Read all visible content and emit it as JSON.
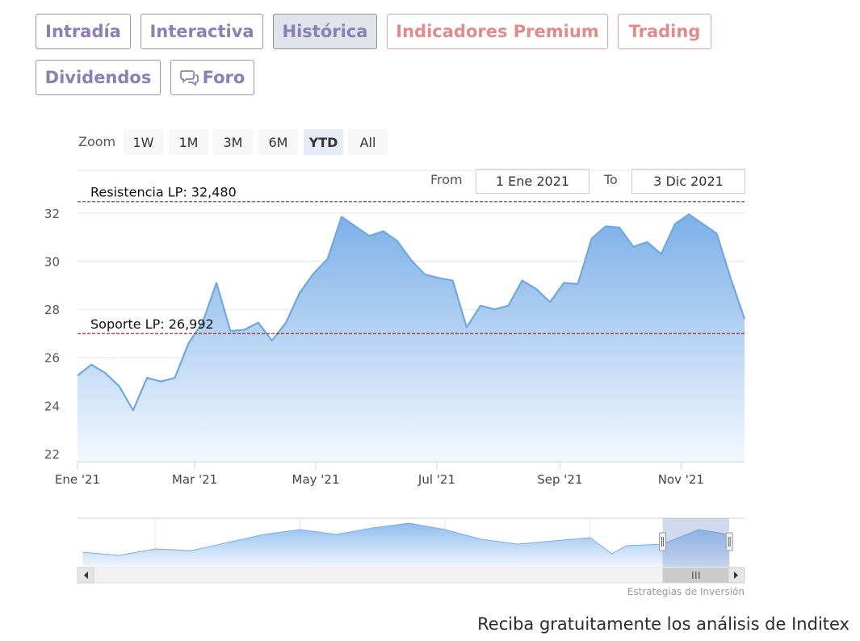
{
  "tabs": [
    "Intradía",
    "Interactiva",
    "Histórica",
    "Indicadores Premium",
    "Trading",
    "Dividendos",
    "Foro"
  ],
  "zoom": {
    "label": "Zoom",
    "buttons": [
      "1W",
      "1M",
      "3M",
      "6M",
      "YTD",
      "All"
    ]
  },
  "range": {
    "from_label": "From",
    "from": "1 Ene 2021",
    "to_label": "To",
    "to": "3 Dic 2021"
  },
  "chart_data": {
    "type": "area",
    "color": "#6fa8e0",
    "x": [
      "2021-01-01",
      "2021-01-08",
      "2021-01-15",
      "2021-01-22",
      "2021-01-29",
      "2021-02-05",
      "2021-02-12",
      "2021-02-19",
      "2021-02-26",
      "2021-03-05",
      "2021-03-12",
      "2021-03-19",
      "2021-03-26",
      "2021-04-02",
      "2021-04-09",
      "2021-04-16",
      "2021-04-23",
      "2021-04-30",
      "2021-05-07",
      "2021-05-14",
      "2021-05-21",
      "2021-05-28",
      "2021-06-04",
      "2021-06-11",
      "2021-06-18",
      "2021-06-25",
      "2021-07-02",
      "2021-07-09",
      "2021-07-16",
      "2021-07-23",
      "2021-07-30",
      "2021-08-06",
      "2021-08-13",
      "2021-08-20",
      "2021-08-27",
      "2021-09-03",
      "2021-09-10",
      "2021-09-17",
      "2021-09-24",
      "2021-10-01",
      "2021-10-08",
      "2021-10-15",
      "2021-10-22",
      "2021-10-29",
      "2021-11-05",
      "2021-11-12",
      "2021-11-19",
      "2021-11-26",
      "2021-12-03"
    ],
    "values": [
      25.25,
      25.7,
      25.35,
      24.8,
      23.8,
      25.15,
      25.0,
      25.15,
      26.6,
      27.45,
      29.1,
      27.1,
      27.15,
      27.45,
      26.7,
      27.45,
      28.7,
      29.5,
      30.1,
      31.85,
      31.45,
      31.05,
      31.25,
      30.85,
      30.05,
      29.45,
      29.3,
      29.2,
      27.25,
      28.15,
      28.0,
      28.15,
      29.2,
      28.85,
      28.3,
      29.1,
      29.05,
      30.95,
      31.45,
      31.4,
      30.6,
      30.8,
      30.3,
      31.55,
      31.95,
      31.55,
      31.15,
      29.3,
      27.6
    ],
    "xlim": [
      "2021-01-01",
      "2021-12-03"
    ],
    "xticks": [
      {
        "value": "2021-01-01",
        "label": "Ene '21"
      },
      {
        "value": "2021-03-01",
        "label": "Mar '21"
      },
      {
        "value": "2021-05-01",
        "label": "May '21"
      },
      {
        "value": "2021-07-01",
        "label": "Jul '21"
      },
      {
        "value": "2021-09-01",
        "label": "Sep '21"
      },
      {
        "value": "2021-11-01",
        "label": "Nov '21"
      }
    ],
    "ylim": [
      21.66,
      33.78
    ],
    "yticks": [
      22,
      24,
      26,
      28,
      30,
      32
    ],
    "grid": true,
    "hlines": [
      {
        "value": 32.48,
        "label": "Resistencia LP: 32,480",
        "color": "#2f7d2f"
      },
      {
        "value": 26.992,
        "label": "Soporte LP: 26,992",
        "color": "#8b1a1a"
      }
    ],
    "navigator": {
      "x": [
        2013.0,
        2013.5,
        2014.0,
        2014.5,
        2015.0,
        2015.5,
        2016.0,
        2016.5,
        2017.0,
        2017.5,
        2018.0,
        2018.5,
        2019.0,
        2019.5,
        2020.0,
        2020.3,
        2020.5,
        2021.0,
        2021.5,
        2021.92
      ],
      "values": [
        22.5,
        21.5,
        23.5,
        23,
        25.5,
        28,
        29.5,
        28,
        30,
        31.5,
        29.5,
        26.5,
        25,
        26,
        27,
        22,
        24.5,
        25,
        29.5,
        28
      ],
      "xlim": [
        2012.93,
        2022.13
      ],
      "ylim": [
        18,
        33
      ],
      "xticks": [
        2014,
        2016,
        2018,
        2020
      ]
    },
    "credit": "Estrategias de Inversión"
  },
  "footer": "Reciba gratuitamente los análisis de Inditex"
}
